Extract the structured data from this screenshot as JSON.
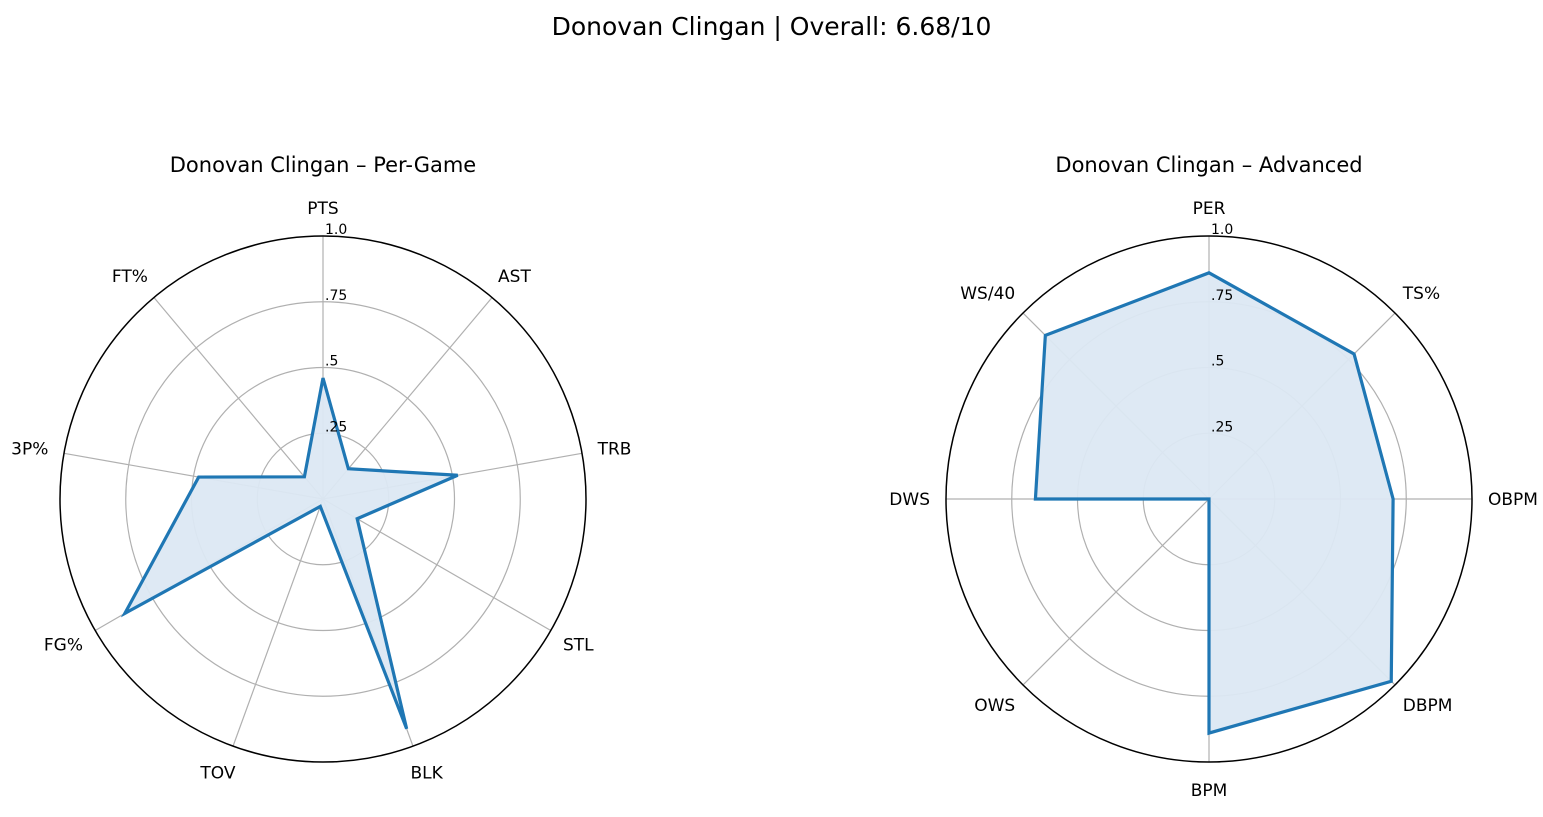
{
  "figure": {
    "suptitle": "Donovan Clingan | Overall: 6.68/10"
  },
  "colors": {
    "line": "#1f77b4",
    "fill": "#dce8f3",
    "grid": "#b0b0b0",
    "frame": "#000000"
  },
  "chart_data": [
    {
      "type": "radar",
      "title": "Donovan Clingan – Per-Game",
      "rlim": [
        0,
        1
      ],
      "rticks": [
        0.25,
        0.5,
        0.75,
        1.0
      ],
      "rtick_labels": [
        ".25",
        ".5",
        ".75",
        "1.0"
      ],
      "grid": true,
      "categories": [
        "PTS",
        "AST",
        "TRB",
        "STL",
        "BLK",
        "TOV",
        "FG%",
        "3P%",
        "FT%"
      ],
      "values": [
        0.46,
        0.15,
        0.52,
        0.15,
        0.93,
        0.03,
        0.87,
        0.48,
        0.11
      ]
    },
    {
      "type": "radar",
      "title": "Donovan Clingan – Advanced",
      "rlim": [
        0,
        1
      ],
      "rticks": [
        0.25,
        0.5,
        0.75,
        1.0
      ],
      "rtick_labels": [
        ".25",
        ".5",
        ".75",
        "1.0"
      ],
      "grid": true,
      "categories": [
        "PER",
        "TS%",
        "OBPM",
        "DBPM",
        "BPM",
        "OWS",
        "DWS",
        "WS/40"
      ],
      "values": [
        0.86,
        0.78,
        0.7,
        0.98,
        0.89,
        0.0,
        0.66,
        0.88
      ]
    }
  ]
}
